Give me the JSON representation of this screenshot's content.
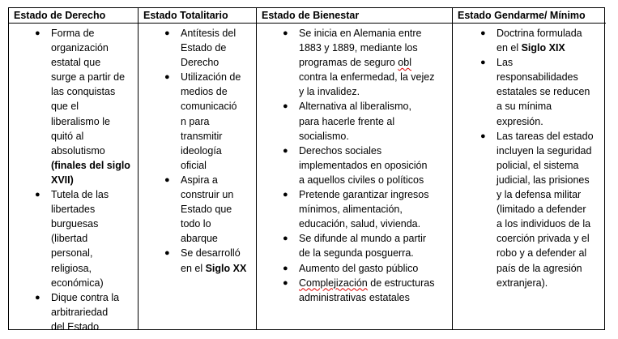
{
  "columns": [
    {
      "header": "Estado de Derecho",
      "items": [
        {
          "lines": [
            "Forma de",
            "organización",
            "estatal que",
            "surge a partir de",
            "las conquistas",
            "que el",
            "liberalismo le",
            "quitó al",
            "absolutismo",
            [
              {
                "t": "(finales del siglo",
                "b": true
              }
            ],
            [
              {
                "t": "XVII)",
                "b": true
              }
            ]
          ]
        },
        {
          "lines": [
            "Tutela de las",
            "libertades",
            "burguesas",
            "(libertad",
            "personal,",
            "religiosa,",
            "económica)"
          ]
        },
        {
          "lines": [
            "Dique contra la",
            "arbitrariedad",
            "del Estado"
          ]
        }
      ]
    },
    {
      "header": "Estado Totalitario",
      "items": [
        {
          "lines": [
            "Antítesis del",
            "Estado de",
            "Derecho"
          ]
        },
        {
          "lines": [
            "Utilización de",
            "medios de",
            "comunicació",
            "n para",
            "transmitir",
            "ideología",
            "oficial"
          ]
        },
        {
          "lines": [
            "Aspira a",
            "construir un",
            "Estado que",
            "todo lo",
            "abarque"
          ]
        },
        {
          "lines": [
            "Se desarrolló",
            [
              {
                "t": "en el "
              },
              {
                "t": "Siglo XX",
                "b": true
              }
            ]
          ]
        }
      ]
    },
    {
      "header": "Estado de Bienestar",
      "items": [
        {
          "lines": [
            "Se inicia en Alemania entre",
            "1883 y 1889, mediante los",
            [
              {
                "t": "programas de seguro "
              },
              {
                "t": "obl",
                "sq": true
              }
            ],
            "contra la enfermedad, la vejez",
            "y la invalidez."
          ]
        },
        {
          "lines": [
            "Alternativa al liberalismo,",
            "para hacerle frente al",
            "socialismo."
          ]
        },
        {
          "lines": [
            "Derechos sociales",
            "implementados en oposición",
            "a aquellos civiles o políticos"
          ]
        },
        {
          "lines": [
            "Pretende garantizar ingresos",
            "mínimos, alimentación,",
            "educación, salud, vivienda."
          ]
        },
        {
          "lines": [
            "Se difunde al mundo a partir",
            "de la segunda posguerra."
          ]
        },
        {
          "lines": [
            "Aumento del gasto público"
          ]
        },
        {
          "lines": [
            [
              {
                "t": "Complejización",
                "sq": true
              },
              {
                "t": " de estructuras"
              }
            ],
            "administrativas estatales"
          ]
        }
      ]
    },
    {
      "header": "Estado Gendarme/ Mínimo",
      "items": [
        {
          "lines": [
            "Doctrina formulada",
            [
              {
                "t": "en el "
              },
              {
                "t": "Siglo XIX",
                "b": true
              }
            ]
          ]
        },
        {
          "lines": [
            "Las",
            "responsabilidades",
            "estatales se reducen",
            "a su mínima",
            "expresión."
          ]
        },
        {
          "lines": [
            "Las tareas del estado",
            "incluyen la seguridad",
            "policial, el sistema",
            "judicial, las prisiones",
            "y la defensa militar",
            "(limitado a defender",
            "a los individuos de la",
            "coerción privada y el",
            "robo y a defender al",
            "país de la agresión",
            "extranjera)."
          ]
        }
      ]
    }
  ]
}
